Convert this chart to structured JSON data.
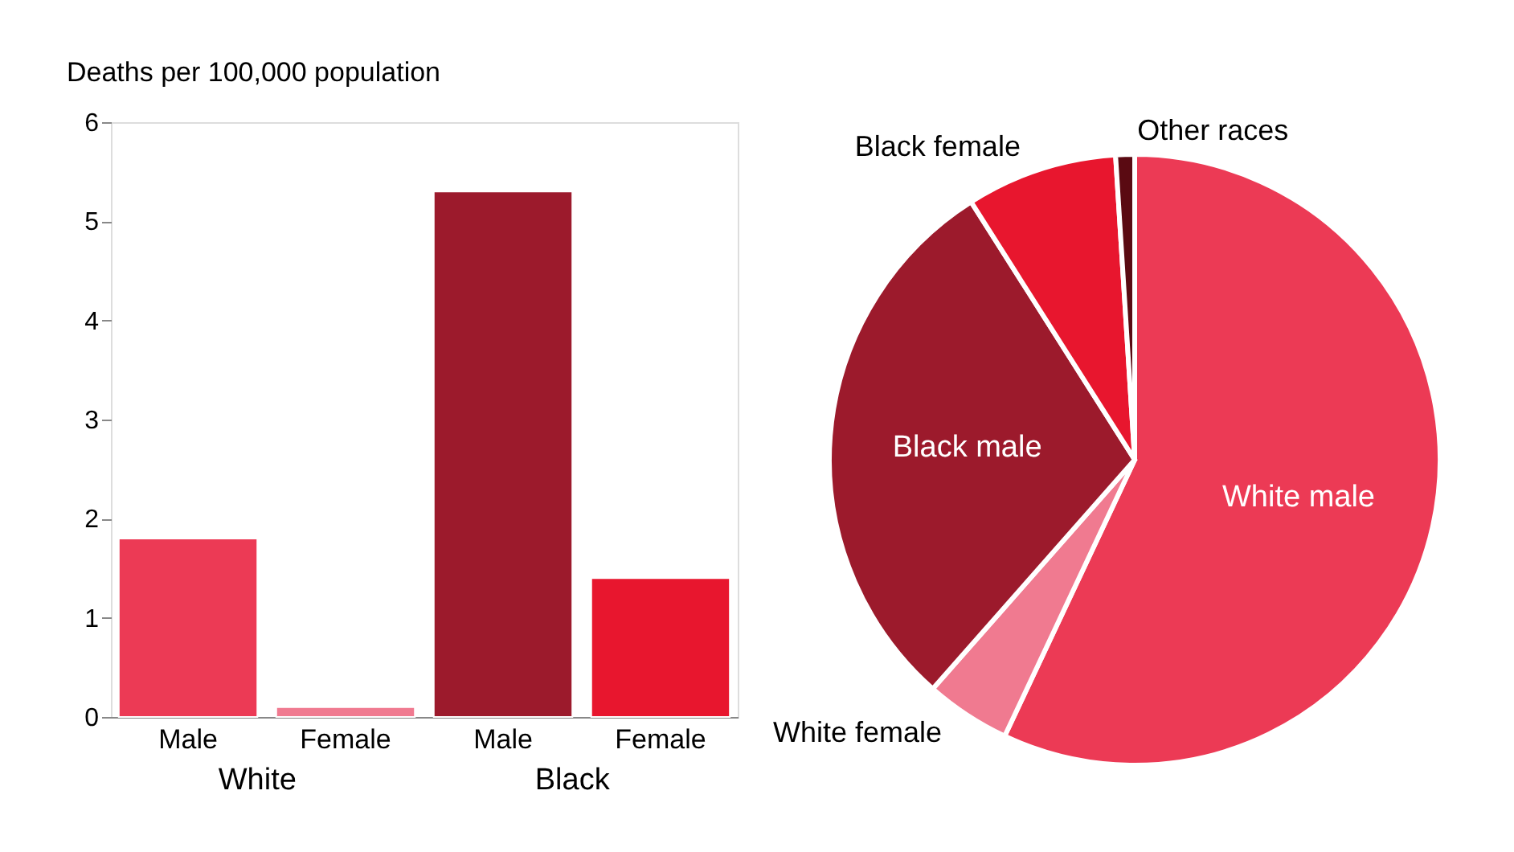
{
  "chart_data": [
    {
      "type": "bar",
      "ylabel": "Deaths per 100,000 population",
      "categories": [
        "Male",
        "Female",
        "Male",
        "Female"
      ],
      "values": [
        1.8,
        0.1,
        5.3,
        1.4
      ],
      "colors": [
        "#ec3a55",
        "#f07a90",
        "#9c1a2c",
        "#e8162e"
      ],
      "ylim": [
        0,
        6
      ],
      "yticks": [
        0,
        1,
        2,
        3,
        4,
        5,
        6
      ],
      "grid": false,
      "annotations": [
        "White",
        "Black"
      ]
    },
    {
      "type": "pie",
      "categories": [
        "White male",
        "White female",
        "Black male",
        "Black female",
        "Other races"
      ],
      "values": [
        57,
        4.5,
        29.5,
        8,
        1
      ],
      "colors": [
        "#ec3a55",
        "#f07a90",
        "#9c1a2c",
        "#e8162e",
        "#5a0a12"
      ]
    }
  ]
}
